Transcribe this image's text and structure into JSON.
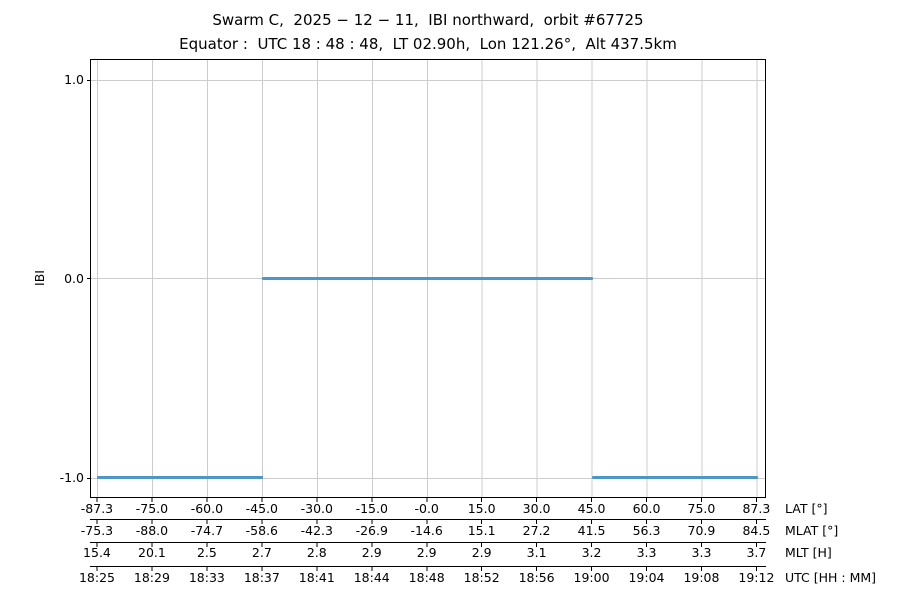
{
  "title": {
    "line1": "Swarm C,  2025 − 12 − 11,  IBI northward,  orbit #67725",
    "line2": "Equator :  UTC 18 : 48 : 48,  LT 02.90h,  Lon 121.26°,  Alt 437.5km"
  },
  "y_axis": {
    "label": "IBI",
    "ticks": [
      "1.0",
      "0.0",
      "-1.0"
    ]
  },
  "x_axes": [
    {
      "name": "LAT [°]",
      "values": [
        "-87.3",
        "-75.0",
        "-60.0",
        "-45.0",
        "-30.0",
        "-15.0",
        "-0.0",
        "15.0",
        "30.0",
        "45.0",
        "60.0",
        "75.0",
        "87.3"
      ]
    },
    {
      "name": "MLAT [°]",
      "values": [
        "-75.3",
        "-88.0",
        "-74.7",
        "-58.6",
        "-42.3",
        "-26.9",
        "-14.6",
        "15.1",
        "27.2",
        "41.5",
        "56.3",
        "70.9",
        "84.5"
      ]
    },
    {
      "name": "MLT [H]",
      "values": [
        "15.4",
        "20.1",
        "2.5",
        "2.7",
        "2.8",
        "2.9",
        "2.9",
        "2.9",
        "3.1",
        "3.2",
        "3.3",
        "3.3",
        "3.7"
      ]
    },
    {
      "name": "UTC [HH : MM]",
      "values": [
        "18:25",
        "18:29",
        "18:33",
        "18:37",
        "18:41",
        "18:44",
        "18:48",
        "18:52",
        "18:56",
        "19:00",
        "19:04",
        "19:08",
        "19:12"
      ]
    }
  ],
  "series": {
    "name": "IBI",
    "color": "#4c96ca",
    "segments": [
      {
        "from_tick": 0,
        "to_tick": 3,
        "y": -1
      },
      {
        "from_tick": 3,
        "to_tick": 9,
        "y": 0
      },
      {
        "from_tick": 9,
        "to_tick": 12,
        "y": -1
      }
    ]
  },
  "colors": {
    "line": "#4c96ca",
    "grid": "#cccccc",
    "axis": "#000000",
    "background": "#ffffff"
  },
  "chart_data": {
    "type": "line",
    "title": "Swarm C, 2025−12−11, IBI northward, orbit #67725",
    "subtitle": "Equator: UTC 18:48:48, LT 02.90h, Lon 121.26°, Alt 437.5km",
    "ylabel": "IBI",
    "ylim": [
      -1.1,
      1.1
    ],
    "yticks": [
      1.0,
      0.0,
      -1.0
    ],
    "grid": true,
    "x_tick_rows": {
      "LAT [°]": [
        -87.3,
        -75.0,
        -60.0,
        -45.0,
        -30.0,
        -15.0,
        -0.0,
        15.0,
        30.0,
        45.0,
        60.0,
        75.0,
        87.3
      ],
      "MLAT [°]": [
        -75.3,
        -88.0,
        -74.7,
        -58.6,
        -42.3,
        -26.9,
        -14.6,
        15.1,
        27.2,
        41.5,
        56.3,
        70.9,
        84.5
      ],
      "MLT [H]": [
        15.4,
        20.1,
        2.5,
        2.7,
        2.8,
        2.9,
        2.9,
        2.9,
        3.1,
        3.2,
        3.3,
        3.3,
        3.7
      ],
      "UTC [HH : MM]": [
        "18:25",
        "18:29",
        "18:33",
        "18:37",
        "18:41",
        "18:44",
        "18:48",
        "18:52",
        "18:56",
        "19:00",
        "19:04",
        "19:08",
        "19:12"
      ]
    },
    "series": [
      {
        "name": "IBI",
        "color": "#4c96ca",
        "segments": [
          {
            "y": -1,
            "x_start_utc": "18:25",
            "x_end_utc": "18:37",
            "lat_start": -87.3,
            "lat_end": -45.0
          },
          {
            "y": 0,
            "x_start_utc": "18:37",
            "x_end_utc": "19:00",
            "lat_start": -45.0,
            "lat_end": 45.0
          },
          {
            "y": -1,
            "x_start_utc": "19:00",
            "x_end_utc": "19:12",
            "lat_start": 45.0,
            "lat_end": 87.3
          }
        ]
      }
    ],
    "legend": false
  }
}
